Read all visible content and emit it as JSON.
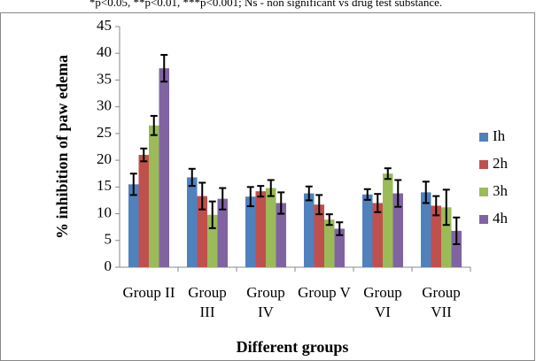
{
  "caption": "*p<0.05, **p<0.01, ***p<0.001; Ns - non significant vs drug test substance.",
  "chart_data": {
    "type": "bar",
    "ylabel": "% inhibition of paw edema",
    "xlabel": "Different groups",
    "categories": [
      "Group II",
      "Group III",
      "Group IV",
      "Group V",
      "Group VI",
      "Group VII"
    ],
    "series": [
      {
        "name": "Ih",
        "color": "#4f81bd",
        "values": [
          15.5,
          16.8,
          13.2,
          13.8,
          13.6,
          14
        ],
        "errors": [
          2,
          1.6,
          1.8,
          1.3,
          1,
          2
        ]
      },
      {
        "name": "2h",
        "color": "#c0504d",
        "values": [
          21,
          13.3,
          14.2,
          11.7,
          12,
          11.5
        ],
        "errors": [
          1.2,
          2.5,
          1,
          1.8,
          1.7,
          1.8
        ]
      },
      {
        "name": "3h",
        "color": "#9bbb59",
        "values": [
          26.5,
          9.8,
          14.8,
          8.9,
          17.5,
          11.2
        ],
        "errors": [
          1.8,
          2.5,
          1.5,
          1,
          1,
          3.3
        ]
      },
      {
        "name": "4h",
        "color": "#8064a2",
        "values": [
          37.2,
          12.8,
          12,
          7.2,
          13.8,
          6.8
        ],
        "errors": [
          2.5,
          2,
          2,
          1.2,
          2.5,
          2.5
        ]
      }
    ],
    "ylim": [
      0,
      45
    ],
    "yticks": [
      0,
      5,
      10,
      15,
      20,
      25,
      30,
      35,
      40,
      45
    ],
    "legend": "right"
  }
}
